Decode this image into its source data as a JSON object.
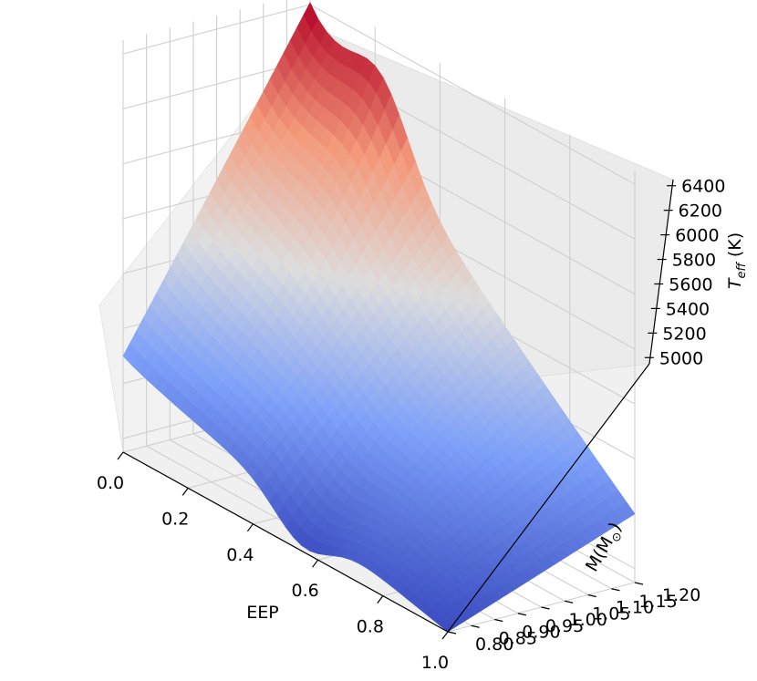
{
  "chart_data": {
    "type": "surface",
    "title": "",
    "colormap": "coolwarm",
    "x_axis": {
      "label": "EEP",
      "range": [
        0.0,
        1.0
      ],
      "ticks": [
        0.0,
        0.2,
        0.4,
        0.6,
        0.8,
        1.0
      ],
      "tick_labels": [
        "0.0",
        "0.2",
        "0.4",
        "0.6",
        "0.8",
        "1.0"
      ]
    },
    "y_axis": {
      "label": "M(M⊙)",
      "range": [
        0.8,
        1.2
      ],
      "ticks": [
        0.8,
        0.85,
        0.9,
        0.95,
        1.0,
        1.05,
        1.1,
        1.15,
        1.2
      ],
      "tick_labels": [
        "0.80",
        "0.85",
        "0.90",
        "0.95",
        "1.00",
        "1.05",
        "1.10",
        "1.15",
        "1.20"
      ]
    },
    "z_axis": {
      "label": "Teff (K)",
      "range": [
        4950,
        6450
      ],
      "ticks": [
        5000,
        5200,
        5400,
        5600,
        5800,
        6000,
        6200,
        6400
      ],
      "tick_labels": [
        "5000",
        "5200",
        "5400",
        "5600",
        "5800",
        "6000",
        "6200",
        "6400"
      ]
    },
    "grid": true,
    "surface_corner_values": {
      "eep_0_mass_0.80": 5300,
      "eep_0_mass_1.20": 6400,
      "eep_1_mass_0.80": 4950,
      "eep_1_mass_1.20": 5200
    }
  }
}
